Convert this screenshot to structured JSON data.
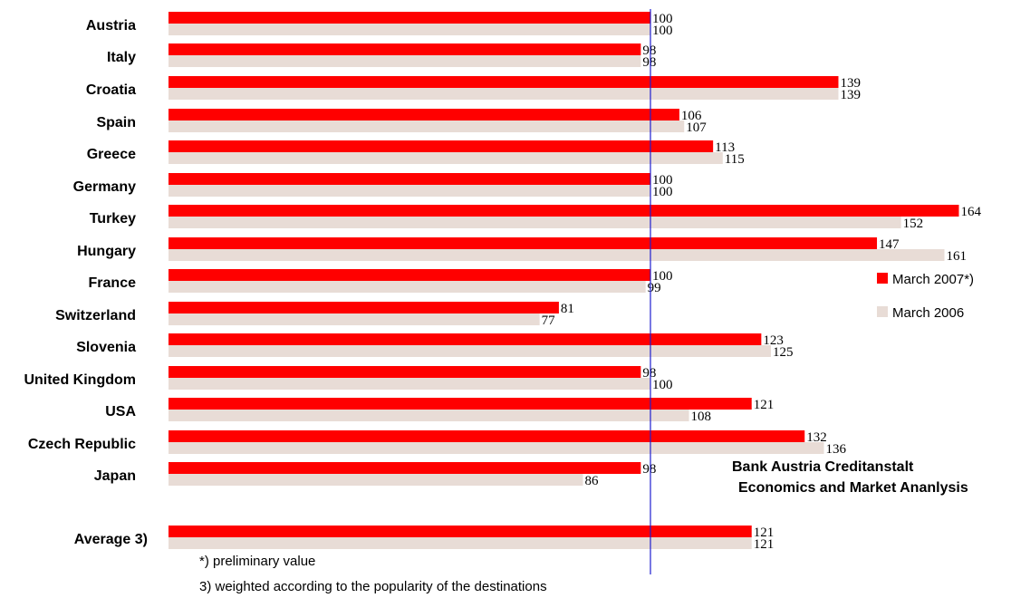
{
  "chart_data": {
    "type": "bar",
    "orientation": "horizontal",
    "categories": [
      "Austria",
      "Italy",
      "Croatia",
      "Spain",
      "Greece",
      "Germany",
      "Turkey",
      "Hungary",
      "France",
      "Switzerland",
      "Slovenia",
      "United Kingdom",
      "USA",
      "Czech Republic",
      "Japan",
      "Average 3)"
    ],
    "series": [
      {
        "name": "March 2007*)",
        "color": "#ff0000",
        "values": [
          100,
          98,
          139,
          106,
          113,
          100,
          164,
          147,
          100,
          81,
          123,
          98,
          121,
          132,
          98,
          121
        ]
      },
      {
        "name": "March 2006",
        "color": "#e8dcd6",
        "values": [
          100,
          98,
          139,
          107,
          115,
          100,
          152,
          161,
          99,
          77,
          125,
          100,
          108,
          136,
          86,
          121
        ]
      }
    ],
    "reference_line": 100,
    "title": "",
    "xlabel": "",
    "ylabel": "",
    "grid": false,
    "legend_position": "right"
  },
  "source": {
    "line1": "Bank Austria Creditanstalt",
    "line2": "Economics and Market Ananlysis"
  },
  "footnotes": {
    "preliminary": "*) preliminary value",
    "weighted": "3)  weighted according to the popularity of the destinations"
  }
}
